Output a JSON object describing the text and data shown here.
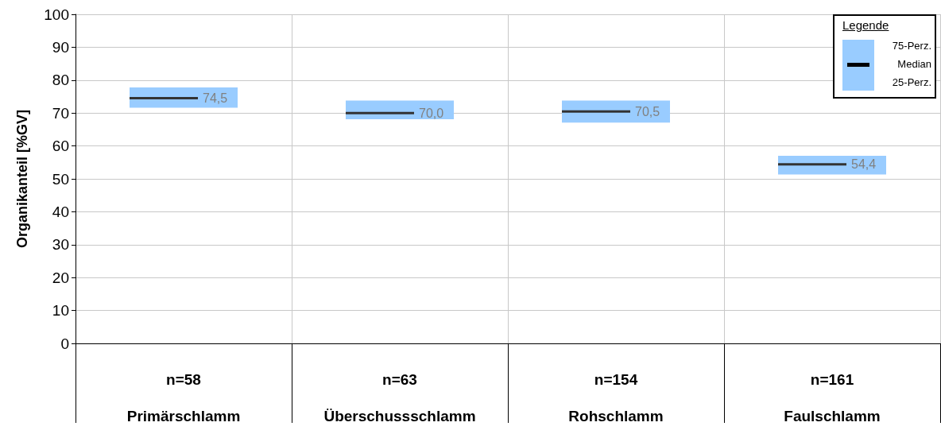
{
  "chart_data": {
    "type": "box",
    "ylabel": "Organikanteil [%GV]",
    "categories": [
      "n=58\nPrimärschlamm",
      "n=63\nÜberschussschlamm",
      "n=154\nRohschlamm",
      "n=161\nFaulschlamm"
    ],
    "series": [
      {
        "name": "Median",
        "color": "#99ccff",
        "value_labels": [
          "74,5",
          "70,0",
          "70,5",
          "54,4"
        ],
        "boxes": [
          {
            "low": 71.6,
            "q1": 71.6,
            "median": 74.5,
            "q3": 77.8,
            "high": 77.8
          },
          {
            "low": 68.1,
            "q1": 68.1,
            "median": 70.0,
            "q3": 73.8,
            "high": 73.8
          },
          {
            "low": 67.1,
            "q1": 67.1,
            "median": 70.5,
            "q3": 73.8,
            "high": 73.8
          },
          {
            "low": 51.3,
            "q1": 51.3,
            "median": 54.4,
            "q3": 57.0,
            "high": 57.0
          }
        ]
      }
    ],
    "ylim": [
      0,
      100
    ],
    "yticks": [
      0,
      10,
      20,
      30,
      40,
      50,
      60,
      70,
      80,
      90,
      100
    ],
    "grid": true,
    "legend": "top right",
    "legend_title": "Legende",
    "annotations": [
      "75-Perz.",
      "25-Perz."
    ]
  }
}
